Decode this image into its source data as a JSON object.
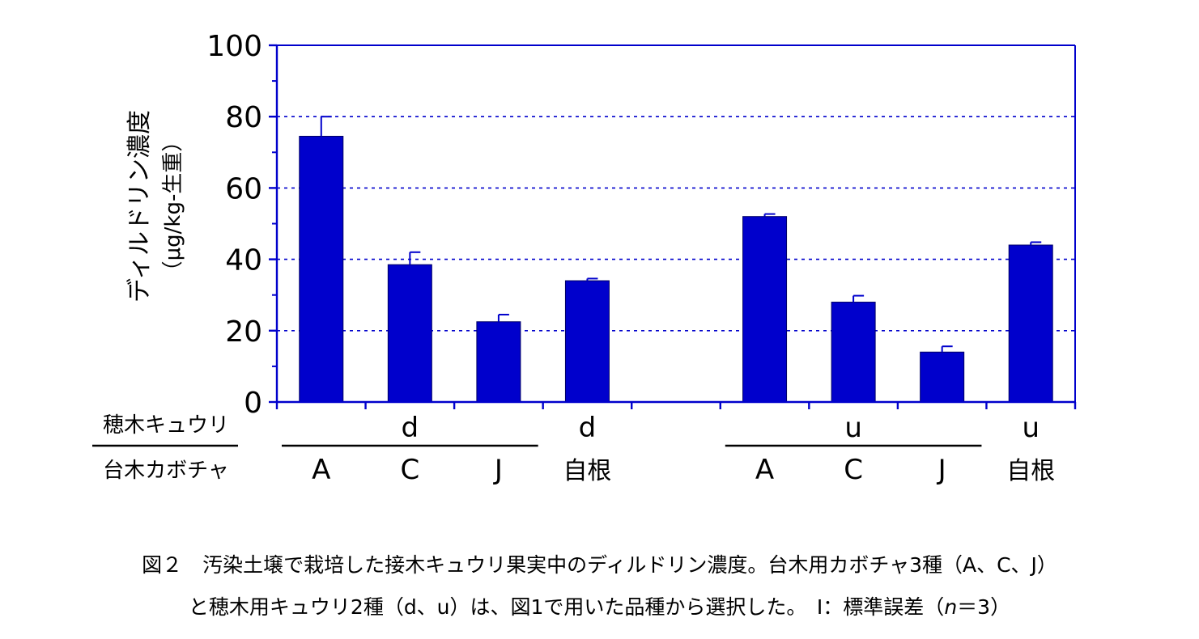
{
  "chart_data": {
    "type": "bar",
    "ylabel": "ディルドリン濃度",
    "yunit": "（μg/kg-生重）",
    "ylim": [
      0,
      100
    ],
    "yticks": [
      "0",
      "20",
      "40",
      "60",
      "80",
      "100"
    ],
    "grid": "dashed horizontal at 20, 40, 60, 80",
    "bar_color": "#0000cc",
    "scion_row_label": "穂木キュウリ",
    "rootstock_row_label": "台木カボチャ",
    "groups": [
      {
        "scion": "d",
        "bars": [
          {
            "rootstock": "A",
            "value": 74.5,
            "se": 5.5
          },
          {
            "rootstock": "C",
            "value": 38.5,
            "se": 3.5
          },
          {
            "rootstock": "J",
            "value": 22.5,
            "se": 2.0
          }
        ]
      },
      {
        "scion": "d",
        "bars": [
          {
            "rootstock": "自根",
            "value": 34.0,
            "se": 0.6
          }
        ]
      },
      {
        "scion": "u",
        "bars": [
          {
            "rootstock": "A",
            "value": 52.0,
            "se": 0.7
          },
          {
            "rootstock": "C",
            "value": 28.0,
            "se": 1.8
          },
          {
            "rootstock": "J",
            "value": 14.0,
            "se": 1.6
          }
        ]
      },
      {
        "scion": "u",
        "bars": [
          {
            "rootstock": "自根",
            "value": 44.0,
            "se": 0.8
          }
        ]
      }
    ]
  },
  "caption": {
    "line1": "図２　汚染土壌で栽培した接木キュウリ果実中のディルドリン濃度。台木用カボチャ3種（A、C、J）",
    "line2_main": "と穂木用キュウリ2種（d、u）は、図1で用いた品種から選択した。　I：標準誤差（",
    "line2_n": "n",
    "line2_end": "＝3）"
  }
}
